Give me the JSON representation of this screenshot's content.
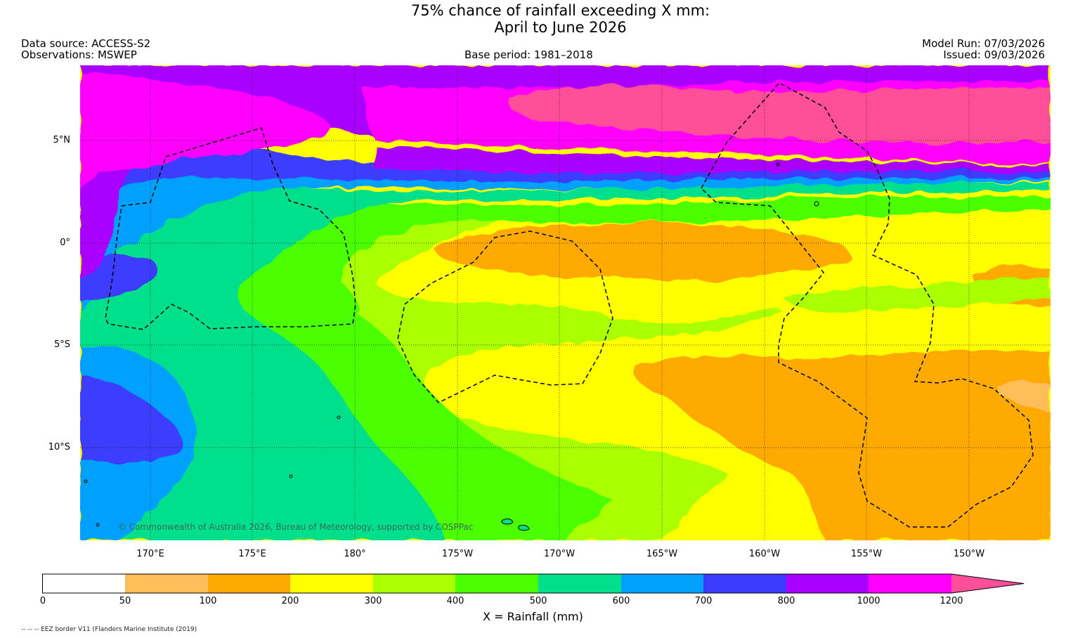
{
  "header": {
    "title_line1": "75% chance of rainfall exceeding X mm:",
    "title_line2": "April to June 2026",
    "data_source": "Data source: ACCESS-S2",
    "observations": "Observations: MSWEP",
    "base_period": "Base period: 1981–2018",
    "model_run": "Model Run: 07/03/2026",
    "issued": "Issued: 09/03/2026"
  },
  "map": {
    "lat_labels": [
      "5°N",
      "0°",
      "5°S",
      "10°S"
    ],
    "lon_labels": [
      "170°E",
      "175°E",
      "180°",
      "175°W",
      "170°W",
      "165°W",
      "160°W",
      "155°W",
      "150°W"
    ],
    "credit": "© Commonwealth of Australia 2026, Bureau of Meteorology, supported by COSPPac",
    "band_colors": {
      "1200+": "#ff4f98",
      "1000-1200": "#ff00ff",
      "800-1000": "#aa00ff",
      "700-800": "#3c3cff",
      "600-700": "#00a0ff",
      "500-600": "#00e08c",
      "400-500": "#4cff00",
      "300-400": "#aaff00",
      "200-300": "#ffff00",
      "100-200": "#ffaa00",
      "50-100": "#ffbe5a"
    }
  },
  "colorbar": {
    "title": "X = Rainfall (mm)",
    "ticks": [
      "0",
      "50",
      "100",
      "200",
      "300",
      "400",
      "500",
      "600",
      "700",
      "800",
      "1000",
      "1200"
    ],
    "colors": [
      "#ffffff",
      "#ffbe5a",
      "#ffaa00",
      "#ffff00",
      "#aaff00",
      "#4cff00",
      "#00e08c",
      "#00a0ff",
      "#3c3cff",
      "#aa00ff",
      "#ff00ff",
      "#ff4f98"
    ]
  },
  "footnote": "-- -- -- EEZ border V11 (Flanders Marine Institute (2019)"
}
